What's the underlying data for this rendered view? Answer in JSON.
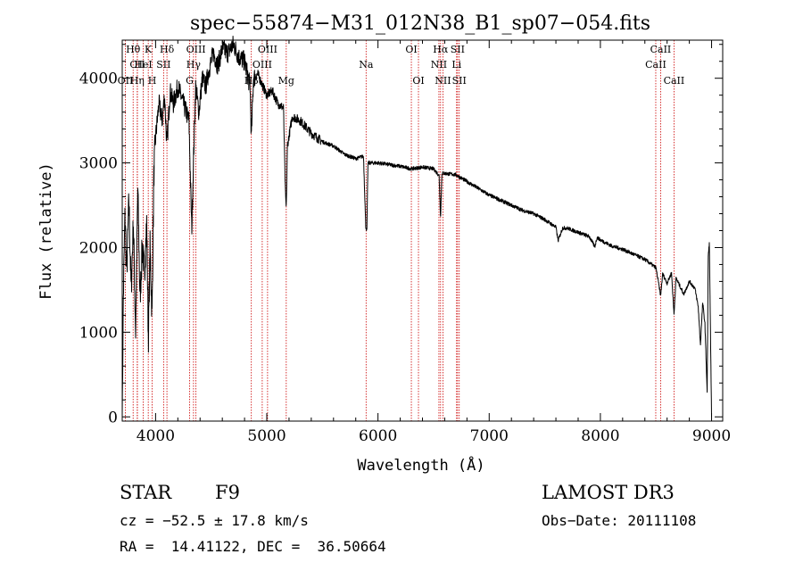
{
  "chart_data": {
    "type": "line",
    "title": "spec−55874−M31_012N38_B1_sp07−054.fits",
    "xlabel": "Wavelength (Å)",
    "ylabel": "Flux (relative)",
    "xlim": [
      3700,
      9100
    ],
    "ylim": [
      -50,
      4450
    ],
    "x_ticks": [
      4000,
      5000,
      6000,
      7000,
      8000,
      9000
    ],
    "y_ticks": [
      0,
      1000,
      2000,
      3000,
      4000
    ],
    "series": [
      {
        "name": "spectrum",
        "color": "#000000",
        "anchors": [
          [
            3700,
            0
          ],
          [
            3710,
            1400
          ],
          [
            3725,
            2400
          ],
          [
            3740,
            1700
          ],
          [
            3760,
            2550
          ],
          [
            3780,
            1500
          ],
          [
            3800,
            2300
          ],
          [
            3820,
            1000
          ],
          [
            3840,
            2700
          ],
          [
            3860,
            1400
          ],
          [
            3880,
            2000
          ],
          [
            3900,
            1700
          ],
          [
            3920,
            2300
          ],
          [
            3935,
            900
          ],
          [
            3950,
            2000
          ],
          [
            3968,
            1200
          ],
          [
            3985,
            2900
          ],
          [
            4000,
            3300
          ],
          [
            4030,
            3700
          ],
          [
            4060,
            3500
          ],
          [
            4080,
            3800
          ],
          [
            4102,
            3200
          ],
          [
            4130,
            3850
          ],
          [
            4160,
            3700
          ],
          [
            4200,
            3900
          ],
          [
            4250,
            3700
          ],
          [
            4300,
            3500
          ],
          [
            4325,
            2200
          ],
          [
            4340,
            3000
          ],
          [
            4360,
            3900
          ],
          [
            4390,
            3600
          ],
          [
            4420,
            4000
          ],
          [
            4450,
            3900
          ],
          [
            4480,
            4100
          ],
          [
            4520,
            4300
          ],
          [
            4560,
            4150
          ],
          [
            4600,
            4350
          ],
          [
            4650,
            4300
          ],
          [
            4700,
            4400
          ],
          [
            4750,
            4250
          ],
          [
            4800,
            4200
          ],
          [
            4850,
            3900
          ],
          [
            4861,
            3300
          ],
          [
            4880,
            4000
          ],
          [
            4920,
            4050
          ],
          [
            4950,
            3950
          ],
          [
            5000,
            3800
          ],
          [
            5050,
            3850
          ],
          [
            5100,
            3700
          ],
          [
            5150,
            3650
          ],
          [
            5167,
            2650
          ],
          [
            5175,
            2450
          ],
          [
            5185,
            3200
          ],
          [
            5230,
            3550
          ],
          [
            5300,
            3500
          ],
          [
            5400,
            3350
          ],
          [
            5500,
            3250
          ],
          [
            5600,
            3200
          ],
          [
            5700,
            3100
          ],
          [
            5800,
            3050
          ],
          [
            5870,
            3080
          ],
          [
            5890,
            2250
          ],
          [
            5900,
            2200
          ],
          [
            5910,
            3000
          ],
          [
            6000,
            3000
          ],
          [
            6100,
            2980
          ],
          [
            6200,
            2960
          ],
          [
            6300,
            2930
          ],
          [
            6400,
            2950
          ],
          [
            6500,
            2930
          ],
          [
            6550,
            2850
          ],
          [
            6563,
            2350
          ],
          [
            6575,
            2880
          ],
          [
            6700,
            2860
          ],
          [
            6800,
            2780
          ],
          [
            6900,
            2700
          ],
          [
            7000,
            2620
          ],
          [
            7100,
            2560
          ],
          [
            7200,
            2500
          ],
          [
            7300,
            2440
          ],
          [
            7400,
            2400
          ],
          [
            7500,
            2330
          ],
          [
            7600,
            2240
          ],
          [
            7620,
            2080
          ],
          [
            7660,
            2230
          ],
          [
            7700,
            2230
          ],
          [
            7800,
            2180
          ],
          [
            7900,
            2130
          ],
          [
            7950,
            2010
          ],
          [
            7970,
            2120
          ],
          [
            8000,
            2090
          ],
          [
            8100,
            2020
          ],
          [
            8200,
            1980
          ],
          [
            8300,
            1920
          ],
          [
            8400,
            1860
          ],
          [
            8500,
            1760
          ],
          [
            8542,
            1430
          ],
          [
            8560,
            1690
          ],
          [
            8600,
            1580
          ],
          [
            8640,
            1700
          ],
          [
            8662,
            1210
          ],
          [
            8680,
            1640
          ],
          [
            8750,
            1450
          ],
          [
            8800,
            1600
          ],
          [
            8850,
            1520
          ],
          [
            8880,
            1300
          ],
          [
            8900,
            850
          ],
          [
            8920,
            1350
          ],
          [
            8940,
            1100
          ],
          [
            8960,
            300
          ],
          [
            8970,
            1900
          ],
          [
            8980,
            2050
          ],
          [
            9000,
            0
          ]
        ]
      }
    ],
    "line_markers": [
      {
        "label": "Hθ",
        "wavelength": 3798,
        "row": 1
      },
      {
        "label": "CII",
        "wavelength": 3836,
        "row": 2
      },
      {
        "label": "OII",
        "wavelength": 3728,
        "row": 3
      },
      {
        "label": "Hη",
        "wavelength": 3835,
        "row": 3
      },
      {
        "label": "K",
        "wavelength": 3934,
        "row": 1
      },
      {
        "label": "HeI",
        "wavelength": 3889,
        "row": 2
      },
      {
        "label": "H",
        "wavelength": 3969,
        "row": 3
      },
      {
        "label": "Hδ",
        "wavelength": 4102,
        "row": 1
      },
      {
        "label": "SII",
        "wavelength": 4072,
        "row": 2
      },
      {
        "label": "OIII",
        "wavelength": 4363,
        "row": 1
      },
      {
        "label": "Hγ",
        "wavelength": 4341,
        "row": 2
      },
      {
        "label": "G",
        "wavelength": 4306,
        "row": 3
      },
      {
        "label": "Hβ",
        "wavelength": 4861,
        "row": 3
      },
      {
        "label": "OIII",
        "wavelength": 5007,
        "row": 1
      },
      {
        "label": "OIII",
        "wavelength": 4959,
        "row": 2
      },
      {
        "label": "Mg",
        "wavelength": 5175,
        "row": 3
      },
      {
        "label": "Na",
        "wavelength": 5893,
        "row": 2
      },
      {
        "label": "OI",
        "wavelength": 6300,
        "row": 1
      },
      {
        "label": "OI",
        "wavelength": 6364,
        "row": 3
      },
      {
        "label": "Hα",
        "wavelength": 6563,
        "row": 1
      },
      {
        "label": "NII",
        "wavelength": 6548,
        "row": 2
      },
      {
        "label": "NII",
        "wavelength": 6584,
        "row": 3
      },
      {
        "label": "SII",
        "wavelength": 6716,
        "row": 1
      },
      {
        "label": "Li",
        "wavelength": 6707,
        "row": 2
      },
      {
        "label": "SII",
        "wavelength": 6731,
        "row": 3
      },
      {
        "label": "CaII",
        "wavelength": 8542,
        "row": 1
      },
      {
        "label": "CaII",
        "wavelength": 8498,
        "row": 2
      },
      {
        "label": "CaII",
        "wavelength": 8662,
        "row": 3
      }
    ],
    "marker_color": "#cc0000"
  },
  "info": {
    "object_class": "STAR",
    "subclass": "F9",
    "survey": "LAMOST DR3",
    "redshift": "cz = −52.5 ± 17.8 km/s",
    "obs_date": "Obs−Date: 20111108",
    "coords": "RA =  14.41122, DEC =  36.50664"
  }
}
